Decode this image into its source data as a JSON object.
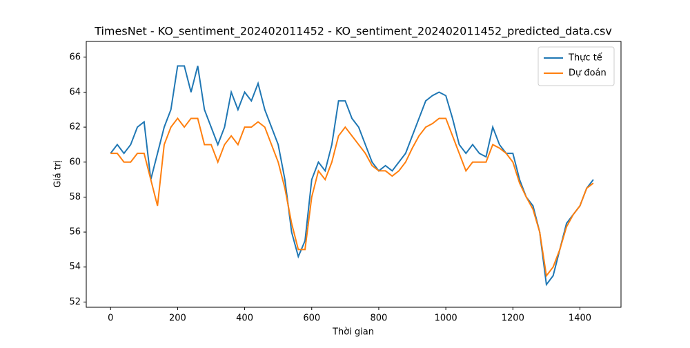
{
  "chart_data": {
    "type": "line",
    "title": "TimesNet - KO_sentiment_202402011452 - KO_sentiment_202402011452_predicted_data.csv",
    "x_label": "Thời gian",
    "y_label": "Giá trị",
    "x": [
      0,
      20,
      40,
      60,
      80,
      100,
      120,
      140,
      160,
      180,
      200,
      220,
      240,
      260,
      280,
      300,
      320,
      340,
      360,
      380,
      400,
      420,
      440,
      460,
      480,
      500,
      520,
      540,
      560,
      580,
      600,
      620,
      640,
      660,
      680,
      700,
      720,
      740,
      760,
      780,
      800,
      820,
      840,
      860,
      880,
      900,
      920,
      940,
      960,
      980,
      1000,
      1020,
      1040,
      1060,
      1080,
      1100,
      1120,
      1140,
      1160,
      1180,
      1200,
      1220,
      1240,
      1260,
      1280,
      1300,
      1320,
      1340,
      1360,
      1380,
      1400,
      1420,
      1440
    ],
    "series": [
      {
        "name": "Thực tế",
        "color": "#1f77b4",
        "values": [
          60.5,
          61,
          60.5,
          61,
          62,
          62.3,
          59,
          60.5,
          62,
          63,
          65.5,
          65.5,
          64,
          65.5,
          63,
          62,
          61,
          62,
          64,
          63,
          64,
          63.5,
          64.5,
          63,
          62,
          61,
          59,
          56,
          54.6,
          55.5,
          59,
          60,
          59.5,
          61,
          63.5,
          63.5,
          62.5,
          62,
          61,
          60,
          59.5,
          59.8,
          59.5,
          60,
          60.5,
          61.5,
          62.5,
          63.5,
          63.8,
          64,
          63.8,
          62.5,
          61,
          60.5,
          61,
          60.5,
          60.3,
          62,
          61,
          60.5,
          60.5,
          59,
          58,
          57.5,
          56,
          53,
          53.5,
          55,
          56.5,
          57,
          57.5,
          58.5,
          59
        ]
      },
      {
        "name": "Dự đoán",
        "color": "#ff7f0e",
        "values": [
          60.5,
          60.5,
          60,
          60,
          60.5,
          60.5,
          59,
          57.5,
          61,
          62,
          62.5,
          62,
          62.5,
          62.5,
          61,
          61,
          60,
          61,
          61.5,
          61,
          62,
          62,
          62.3,
          62,
          61,
          60,
          58.5,
          56.5,
          55,
          55,
          58,
          59.5,
          59,
          60,
          61.5,
          62,
          61.5,
          61,
          60.5,
          59.8,
          59.5,
          59.5,
          59.2,
          59.5,
          60,
          60.8,
          61.5,
          62,
          62.2,
          62.5,
          62.5,
          61.5,
          60.5,
          59.5,
          60,
          60,
          60,
          61,
          60.8,
          60.5,
          60,
          58.8,
          58,
          57.3,
          56,
          53.5,
          54,
          55,
          56.3,
          57,
          57.5,
          58.5,
          58.8
        ]
      }
    ],
    "xlim": [
      -72.5,
      1522.5
    ],
    "xticks": [
      0,
      200,
      400,
      600,
      800,
      1000,
      1200,
      1400
    ],
    "ylim": [
      51.7,
      66.9
    ],
    "yticks": [
      52,
      54,
      56,
      58,
      60,
      62,
      64,
      66
    ],
    "legend": "upper right"
  }
}
